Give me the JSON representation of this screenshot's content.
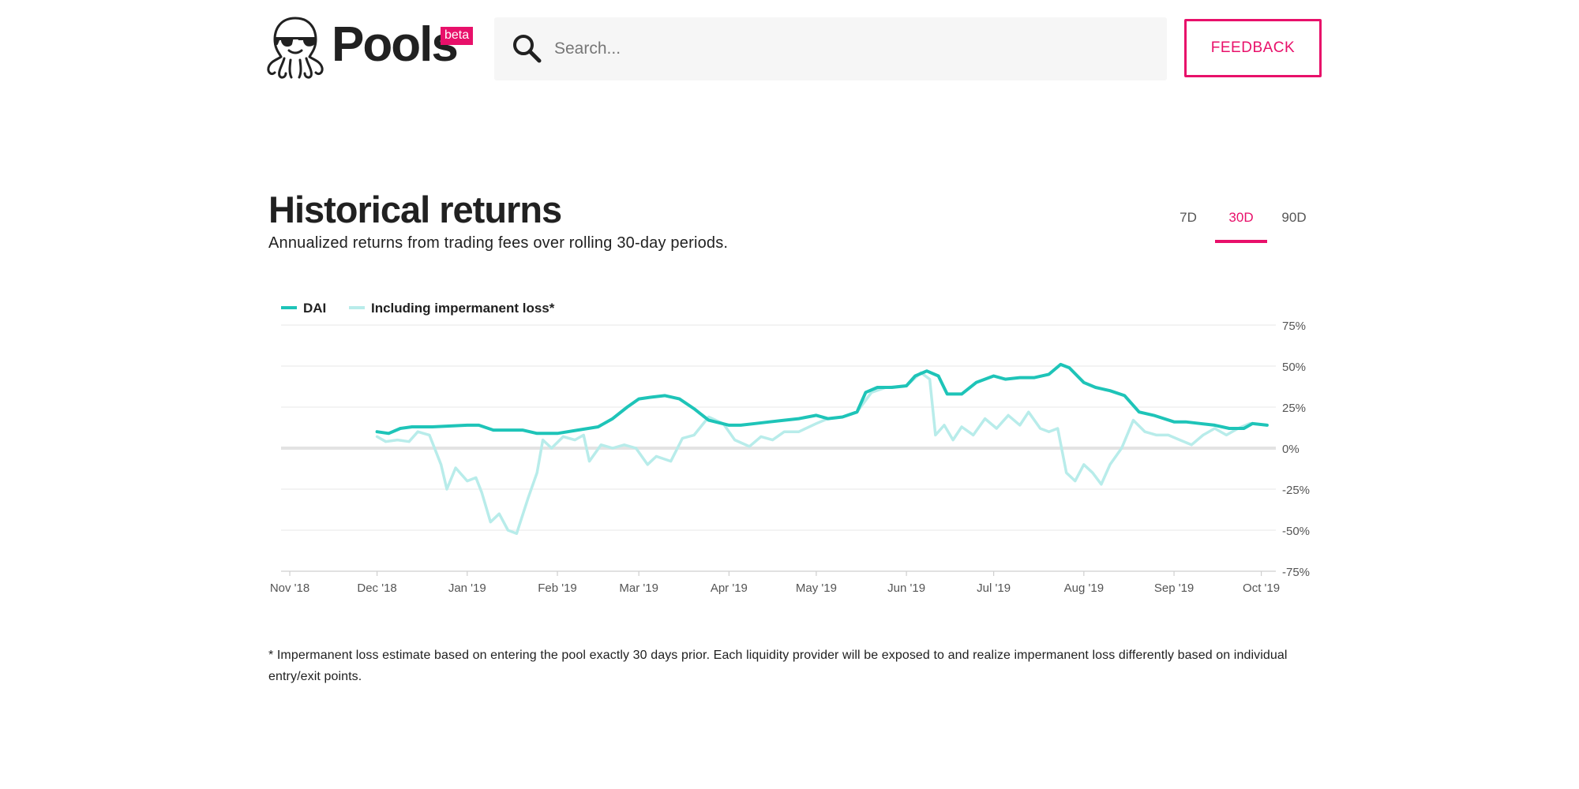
{
  "header": {
    "logo_text": "Pools",
    "beta_badge": "beta",
    "search_placeholder": "Search...",
    "feedback_label": "FEEDBACK"
  },
  "section": {
    "title": "Historical returns",
    "subtitle": "Annualized returns from trading fees over rolling 30-day periods.",
    "tabs": [
      {
        "label": "7D",
        "active": false
      },
      {
        "label": "30D",
        "active": true
      },
      {
        "label": "90D",
        "active": false
      }
    ],
    "footnote": "* Impermanent loss estimate based on entering the pool exactly 30 days prior. Each liquidity provider will be exposed to and realize impermanent loss differently based on individual entry/exit points."
  },
  "colors": {
    "accent": "#e8106a",
    "series_main": "#1ec4b8",
    "series_il": "#b8ecea"
  },
  "chart_data": {
    "type": "line",
    "title": "",
    "xlabel": "",
    "ylabel": "",
    "ylim": [
      -75,
      75
    ],
    "y_ticks": [
      "75%",
      "50%",
      "25%",
      "0%",
      "-25%",
      "-50%",
      "-75%"
    ],
    "y_tick_values": [
      75,
      50,
      25,
      0,
      -25,
      -50,
      -75
    ],
    "x_ticks": [
      "Nov '18",
      "Dec '18",
      "Jan '19",
      "Feb '19",
      "Mar '19",
      "Apr '19",
      "May '19",
      "Jun '19",
      "Jul '19",
      "Aug '19",
      "Sep '19",
      "Oct '19"
    ],
    "x_tick_dates": [
      "2018-11-01",
      "2018-12-01",
      "2019-01-01",
      "2019-02-01",
      "2019-03-01",
      "2019-04-01",
      "2019-05-01",
      "2019-06-01",
      "2019-07-01",
      "2019-08-01",
      "2019-09-01",
      "2019-10-01"
    ],
    "x_range": [
      "2018-10-29",
      "2019-10-06"
    ],
    "grid": true,
    "legend": "top-left",
    "series": [
      {
        "name": "DAI",
        "points": [
          [
            "2018-12-01",
            10
          ],
          [
            "2018-12-05",
            9
          ],
          [
            "2018-12-09",
            12
          ],
          [
            "2018-12-13",
            13
          ],
          [
            "2018-12-20",
            13
          ],
          [
            "2019-01-01",
            14
          ],
          [
            "2019-01-05",
            14
          ],
          [
            "2019-01-10",
            11
          ],
          [
            "2019-01-15",
            11
          ],
          [
            "2019-01-20",
            11
          ],
          [
            "2019-01-25",
            9
          ],
          [
            "2019-02-01",
            9
          ],
          [
            "2019-02-08",
            11
          ],
          [
            "2019-02-15",
            13
          ],
          [
            "2019-02-20",
            18
          ],
          [
            "2019-02-25",
            25
          ],
          [
            "2019-03-01",
            30
          ],
          [
            "2019-03-05",
            31
          ],
          [
            "2019-03-10",
            32
          ],
          [
            "2019-03-15",
            30
          ],
          [
            "2019-03-20",
            24
          ],
          [
            "2019-03-25",
            17
          ],
          [
            "2019-04-01",
            14
          ],
          [
            "2019-04-05",
            14
          ],
          [
            "2019-04-10",
            15
          ],
          [
            "2019-04-15",
            16
          ],
          [
            "2019-04-20",
            17
          ],
          [
            "2019-04-25",
            18
          ],
          [
            "2019-05-01",
            20
          ],
          [
            "2019-05-05",
            18
          ],
          [
            "2019-05-10",
            19
          ],
          [
            "2019-05-15",
            22
          ],
          [
            "2019-05-18",
            34
          ],
          [
            "2019-05-22",
            37
          ],
          [
            "2019-05-27",
            37
          ],
          [
            "2019-06-01",
            38
          ],
          [
            "2019-06-04",
            44
          ],
          [
            "2019-06-08",
            47
          ],
          [
            "2019-06-12",
            44
          ],
          [
            "2019-06-15",
            33
          ],
          [
            "2019-06-20",
            33
          ],
          [
            "2019-06-25",
            40
          ],
          [
            "2019-07-01",
            44
          ],
          [
            "2019-07-05",
            42
          ],
          [
            "2019-07-10",
            43
          ],
          [
            "2019-07-15",
            43
          ],
          [
            "2019-07-20",
            45
          ],
          [
            "2019-07-24",
            51
          ],
          [
            "2019-07-27",
            49
          ],
          [
            "2019-08-01",
            40
          ],
          [
            "2019-08-05",
            37
          ],
          [
            "2019-08-10",
            35
          ],
          [
            "2019-08-15",
            32
          ],
          [
            "2019-08-20",
            22
          ],
          [
            "2019-08-25",
            20
          ],
          [
            "2019-09-01",
            16
          ],
          [
            "2019-09-05",
            16
          ],
          [
            "2019-09-10",
            15
          ],
          [
            "2019-09-15",
            14
          ],
          [
            "2019-09-20",
            12
          ],
          [
            "2019-09-25",
            12
          ],
          [
            "2019-09-28",
            15
          ],
          [
            "2019-10-03",
            14
          ]
        ]
      },
      {
        "name": "Including impermanent loss*",
        "points": [
          [
            "2018-12-01",
            7
          ],
          [
            "2018-12-04",
            4
          ],
          [
            "2018-12-08",
            5
          ],
          [
            "2018-12-12",
            4
          ],
          [
            "2018-12-15",
            10
          ],
          [
            "2018-12-19",
            8
          ],
          [
            "2018-12-23",
            -10
          ],
          [
            "2018-12-25",
            -25
          ],
          [
            "2018-12-28",
            -12
          ],
          [
            "2019-01-01",
            -20
          ],
          [
            "2019-01-04",
            -18
          ],
          [
            "2019-01-06",
            -27
          ],
          [
            "2019-01-09",
            -45
          ],
          [
            "2019-01-12",
            -40
          ],
          [
            "2019-01-15",
            -50
          ],
          [
            "2019-01-18",
            -52
          ],
          [
            "2019-01-22",
            -30
          ],
          [
            "2019-01-25",
            -15
          ],
          [
            "2019-01-27",
            5
          ],
          [
            "2019-01-30",
            0
          ],
          [
            "2019-02-03",
            7
          ],
          [
            "2019-02-07",
            5
          ],
          [
            "2019-02-10",
            8
          ],
          [
            "2019-02-12",
            -8
          ],
          [
            "2019-02-16",
            2
          ],
          [
            "2019-02-20",
            0
          ],
          [
            "2019-02-24",
            2
          ],
          [
            "2019-02-28",
            0
          ],
          [
            "2019-03-04",
            -10
          ],
          [
            "2019-03-07",
            -5
          ],
          [
            "2019-03-12",
            -8
          ],
          [
            "2019-03-16",
            6
          ],
          [
            "2019-03-20",
            8
          ],
          [
            "2019-03-25",
            19
          ],
          [
            "2019-03-30",
            15
          ],
          [
            "2019-04-03",
            5
          ],
          [
            "2019-04-08",
            1
          ],
          [
            "2019-04-12",
            7
          ],
          [
            "2019-04-16",
            5
          ],
          [
            "2019-04-20",
            10
          ],
          [
            "2019-04-25",
            10
          ],
          [
            "2019-05-01",
            15
          ],
          [
            "2019-05-05",
            18
          ],
          [
            "2019-05-10",
            19
          ],
          [
            "2019-05-15",
            22
          ],
          [
            "2019-05-20",
            34
          ],
          [
            "2019-05-25",
            37
          ],
          [
            "2019-06-01",
            38
          ],
          [
            "2019-06-06",
            46
          ],
          [
            "2019-06-09",
            42
          ],
          [
            "2019-06-11",
            8
          ],
          [
            "2019-06-14",
            14
          ],
          [
            "2019-06-17",
            5
          ],
          [
            "2019-06-20",
            13
          ],
          [
            "2019-06-24",
            8
          ],
          [
            "2019-06-28",
            18
          ],
          [
            "2019-07-02",
            12
          ],
          [
            "2019-07-06",
            20
          ],
          [
            "2019-07-10",
            14
          ],
          [
            "2019-07-13",
            22
          ],
          [
            "2019-07-17",
            12
          ],
          [
            "2019-07-20",
            10
          ],
          [
            "2019-07-23",
            12
          ],
          [
            "2019-07-26",
            -15
          ],
          [
            "2019-07-29",
            -20
          ],
          [
            "2019-08-01",
            -10
          ],
          [
            "2019-08-04",
            -15
          ],
          [
            "2019-08-07",
            -22
          ],
          [
            "2019-08-10",
            -10
          ],
          [
            "2019-08-14",
            0
          ],
          [
            "2019-08-18",
            17
          ],
          [
            "2019-08-22",
            10
          ],
          [
            "2019-08-26",
            8
          ],
          [
            "2019-08-30",
            8
          ],
          [
            "2019-09-03",
            5
          ],
          [
            "2019-09-07",
            2
          ],
          [
            "2019-09-11",
            8
          ],
          [
            "2019-09-15",
            12
          ],
          [
            "2019-09-19",
            8
          ],
          [
            "2019-09-23",
            12
          ],
          [
            "2019-09-27",
            15
          ],
          [
            "2019-10-03",
            14
          ]
        ]
      }
    ]
  }
}
